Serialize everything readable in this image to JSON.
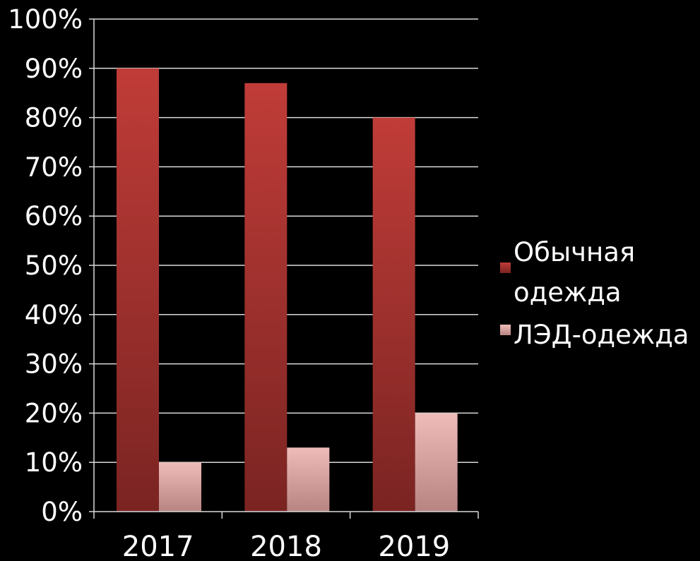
{
  "chart_data": {
    "type": "bar",
    "categories": [
      "2017",
      "2018",
      "2019"
    ],
    "series": [
      {
        "name": "Обычная одежда",
        "values": [
          90,
          87,
          80
        ],
        "color": "#b83a37"
      },
      {
        "name": "ЛЭД-одежда",
        "values": [
          10,
          13,
          20
        ],
        "color": "#e6b0ae"
      }
    ],
    "ylim": [
      0,
      100
    ],
    "yticks": [
      "0%",
      "10%",
      "20%",
      "30%",
      "40%",
      "50%",
      "60%",
      "70%",
      "80%",
      "90%",
      "100%"
    ],
    "grid": true,
    "legend_placement": "right",
    "legend_lines": [
      [
        "Обычная",
        "одежда"
      ],
      [
        "ЛЭД-одежда"
      ]
    ],
    "background": "#000000"
  }
}
